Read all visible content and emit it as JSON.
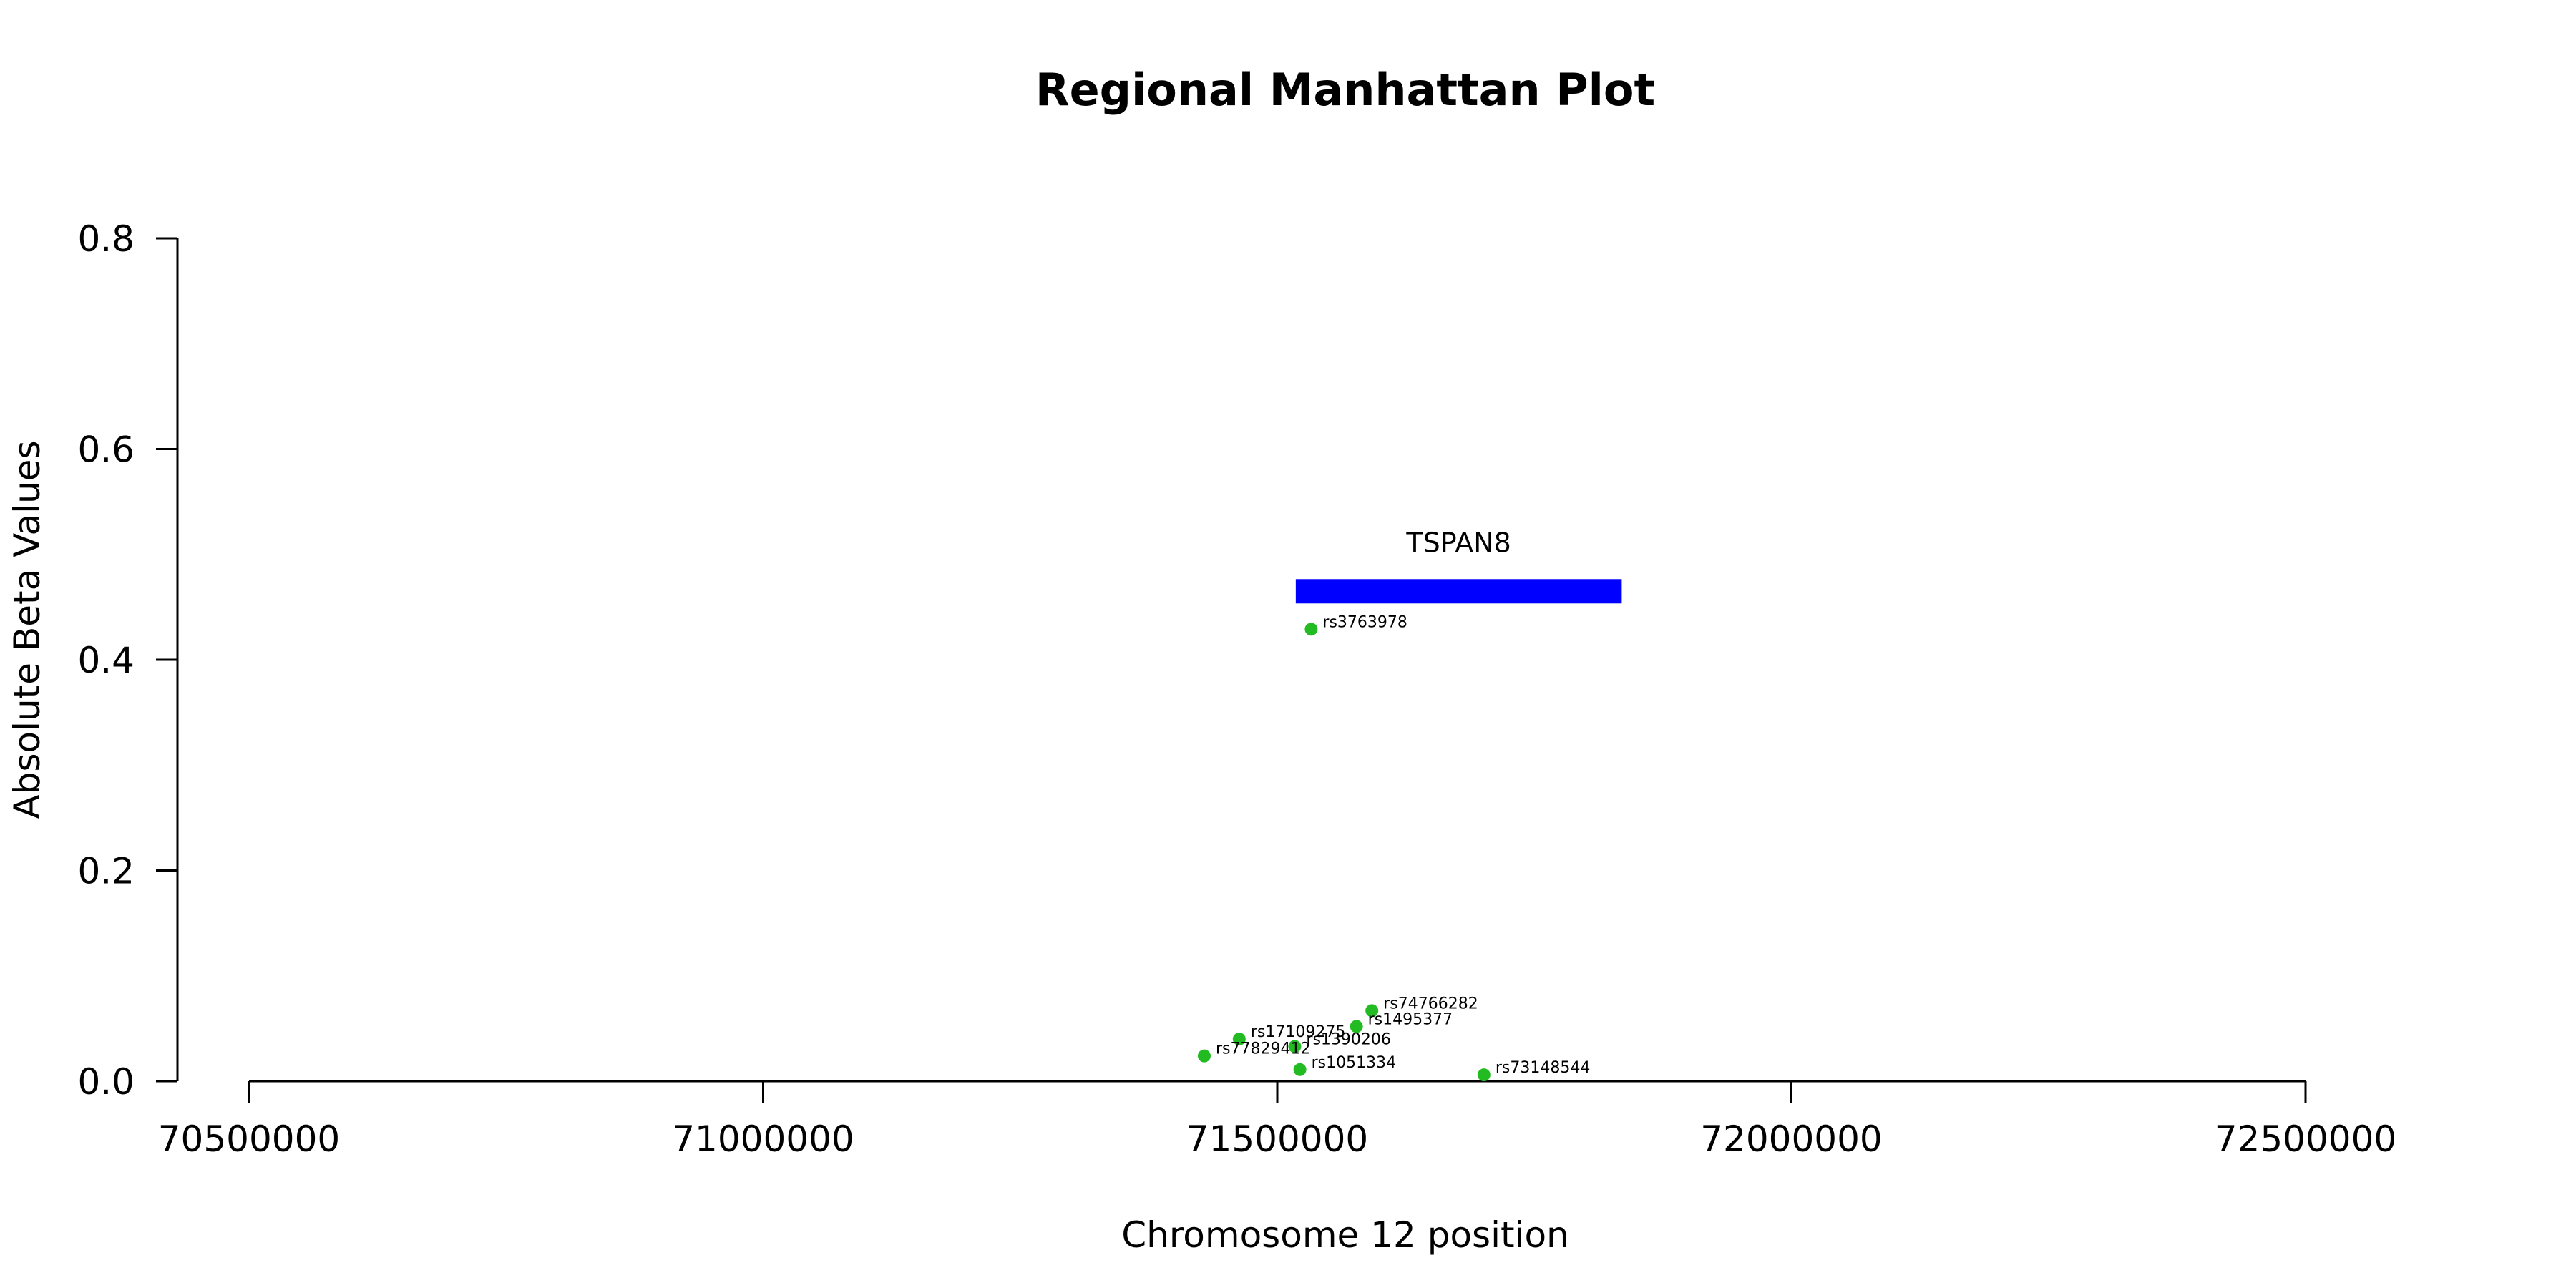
{
  "chart_data": {
    "type": "scatter",
    "title": "Regional Manhattan Plot",
    "xlabel": "Chromosome 12 position",
    "ylabel": "Absolute Beta Values",
    "xlim": [
      70500000,
      72500000
    ],
    "ylim": [
      0,
      0.8
    ],
    "x_ticks": [
      {
        "value": 70500000,
        "label": "70500000"
      },
      {
        "value": 71000000,
        "label": "71000000"
      },
      {
        "value": 71500000,
        "label": "71500000"
      },
      {
        "value": 72000000,
        "label": "72000000"
      },
      {
        "value": 72500000,
        "label": "72500000"
      }
    ],
    "y_ticks": [
      {
        "value": 0.0,
        "label": "0.0"
      },
      {
        "value": 0.2,
        "label": "0.2"
      },
      {
        "value": 0.4,
        "label": "0.4"
      },
      {
        "value": 0.6,
        "label": "0.6"
      },
      {
        "value": 0.8,
        "label": "0.8"
      }
    ],
    "point_color": "#22bb22",
    "points": [
      {
        "label": "rs3763978",
        "x": 71533000,
        "y": 0.429
      },
      {
        "label": "rs74766282",
        "x": 71592000,
        "y": 0.067
      },
      {
        "label": "rs1495377",
        "x": 71577000,
        "y": 0.052
      },
      {
        "label": "rs17109275",
        "x": 71463000,
        "y": 0.04
      },
      {
        "label": "rs1390206",
        "x": 71517000,
        "y": 0.033
      },
      {
        "label": "rs77829412",
        "x": 71429000,
        "y": 0.024
      },
      {
        "label": "rs1051334",
        "x": 71522000,
        "y": 0.011
      },
      {
        "label": "rs73148544",
        "x": 71701000,
        "y": 0.006
      }
    ],
    "genes": [
      {
        "name": "TSPAN8",
        "start": 71518000,
        "end": 71835000,
        "y": 0.465,
        "color": "#0000ff"
      }
    ],
    "grid": false,
    "legend": "none"
  }
}
